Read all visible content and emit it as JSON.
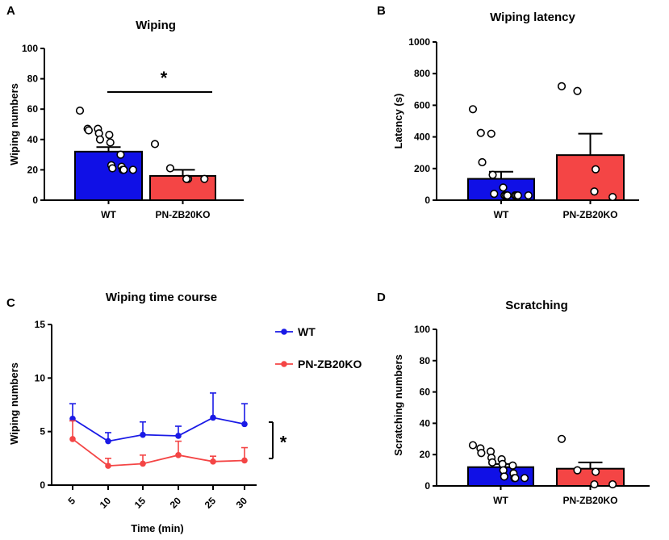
{
  "chart_data": [
    {
      "panel": "A",
      "type": "bar",
      "title": "Wiping",
      "xlabel": "",
      "ylabel": "Wiping numbers",
      "ylim": [
        0,
        100
      ],
      "yticks": [
        "0",
        "20",
        "40",
        "60",
        "80",
        "100"
      ],
      "categories": [
        "WT",
        "PN-ZB20KO"
      ],
      "values": [
        32,
        16
      ],
      "sem": [
        3,
        4
      ],
      "colors": [
        "#1010e6",
        "#f44545"
      ],
      "points": [
        [
          59,
          47,
          47,
          46,
          44,
          43,
          40,
          38,
          30,
          23,
          22,
          21,
          20,
          20,
          20
        ],
        [
          37,
          21,
          14,
          14,
          14
        ]
      ],
      "significance": "*"
    },
    {
      "panel": "B",
      "type": "bar",
      "title": "Wiping latency",
      "xlabel": "",
      "ylabel": "Latency (s)",
      "ylim": [
        0,
        1000
      ],
      "yticks": [
        "0",
        "200",
        "400",
        "600",
        "800",
        "1000"
      ],
      "categories": [
        "WT",
        "PN-ZB20KO"
      ],
      "values": [
        135,
        285
      ],
      "sem": [
        45,
        135
      ],
      "colors": [
        "#1010e6",
        "#f44545"
      ],
      "points": [
        [
          575,
          425,
          420,
          240,
          160,
          80,
          40,
          30,
          30,
          30,
          30,
          30,
          30,
          30
        ],
        [
          720,
          690,
          195,
          55,
          20
        ]
      ]
    },
    {
      "panel": "C",
      "type": "line",
      "title": "Wiping time course",
      "xlabel": "Time (min)",
      "ylabel": "Wiping numbers",
      "ylim": [
        0,
        15
      ],
      "yticks": [
        "0",
        "5",
        "10",
        "15"
      ],
      "x": [
        "5",
        "10",
        "15",
        "20",
        "25",
        "30"
      ],
      "series": [
        {
          "name": "WT",
          "color": "#1a1ae6",
          "values": [
            6.2,
            4.1,
            4.7,
            4.6,
            6.3,
            5.7
          ],
          "err": [
            1.4,
            0.8,
            1.2,
            0.9,
            2.3,
            1.9
          ]
        },
        {
          "name": "PN-ZB20KO",
          "color": "#f44545",
          "values": [
            4.3,
            1.8,
            2.0,
            2.8,
            2.2,
            2.3
          ],
          "err": [
            1.7,
            0.7,
            0.8,
            1.3,
            0.5,
            1.2
          ]
        }
      ],
      "legend_position": "right",
      "significance": "*"
    },
    {
      "panel": "D",
      "type": "bar",
      "title": "Scratching",
      "xlabel": "",
      "ylabel": "Scratching numbers",
      "ylim": [
        0,
        100
      ],
      "yticks": [
        "0",
        "20",
        "40",
        "60",
        "80",
        "100"
      ],
      "categories": [
        "WT",
        "PN-ZB20KO"
      ],
      "values": [
        12,
        11
      ],
      "sem": [
        2,
        4
      ],
      "colors": [
        "#1010e6",
        "#f44545"
      ],
      "points": [
        [
          26,
          24,
          22,
          21,
          18,
          17,
          15,
          14,
          13,
          10,
          8,
          6,
          5,
          5,
          5
        ],
        [
          30,
          10,
          9,
          1,
          1
        ]
      ]
    }
  ]
}
